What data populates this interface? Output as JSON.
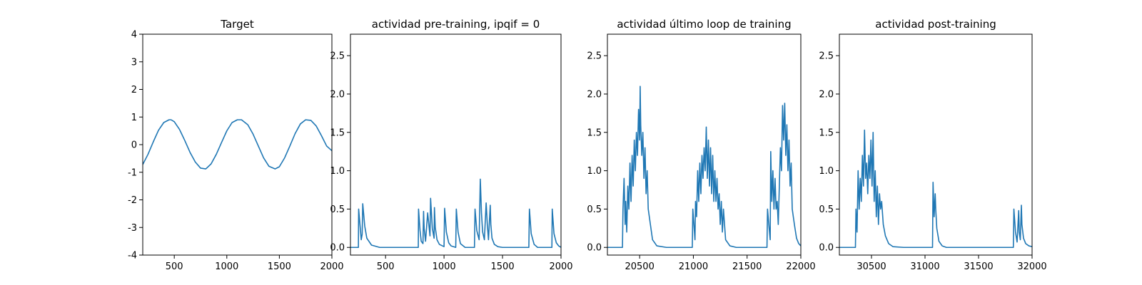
{
  "colors": {
    "series": "#1f77b4",
    "axes": "#000000",
    "background": "#ffffff"
  },
  "chart_data": [
    {
      "type": "line",
      "title": "Target",
      "xlabel": "",
      "ylabel": "",
      "xlim": [
        200,
        2000
      ],
      "ylim": [
        -4,
        4
      ],
      "xticks": [
        500,
        1000,
        1500,
        2000
      ],
      "yticks": [
        -4,
        -3,
        -2,
        -1,
        0,
        1,
        2,
        3,
        4
      ],
      "grid": false,
      "series": [
        {
          "x": [
            200,
            250,
            300,
            350,
            400,
            450,
            470,
            500,
            550,
            600,
            650,
            700,
            750,
            800,
            850,
            900,
            950,
            1000,
            1050,
            1100,
            1140,
            1200,
            1250,
            1300,
            1350,
            1400,
            1460,
            1500,
            1550,
            1600,
            1650,
            1700,
            1750,
            1800,
            1850,
            1900,
            1950,
            2000
          ],
          "y": [
            -0.72,
            -0.35,
            0.1,
            0.52,
            0.8,
            0.9,
            0.9,
            0.83,
            0.55,
            0.15,
            -0.28,
            -0.63,
            -0.85,
            -0.88,
            -0.7,
            -0.35,
            0.08,
            0.5,
            0.8,
            0.9,
            0.9,
            0.72,
            0.38,
            -0.05,
            -0.48,
            -0.78,
            -0.88,
            -0.8,
            -0.48,
            -0.05,
            0.4,
            0.75,
            0.9,
            0.88,
            0.68,
            0.33,
            -0.05,
            -0.22
          ]
        }
      ]
    },
    {
      "type": "line",
      "title": "actividad pre-training, ipqif = 0",
      "xlabel": "",
      "ylabel": "",
      "xlim": [
        200,
        2000
      ],
      "ylim": [
        -0.1,
        2.78
      ],
      "xticks": [
        500,
        1000,
        1500,
        2000
      ],
      "yticks": [
        0.0,
        0.5,
        1.0,
        1.5,
        2.0,
        2.5
      ],
      "ytick_labels": [
        "0.0",
        "0.5",
        "1.0",
        "1.5",
        "2.0",
        "2.5"
      ],
      "grid": false,
      "series": [
        {
          "x": [
            200,
            268,
            270,
            283,
            292,
            300,
            305,
            322,
            340,
            380,
            450,
            600,
            780,
            782,
            795,
            805,
            820,
            825,
            830,
            842,
            860,
            880,
            885,
            900,
            915,
            918,
            925,
            940,
            960,
            1000,
            1005,
            1020,
            1040,
            1060,
            1100,
            1105,
            1120,
            1140,
            1180,
            1260,
            1265,
            1280,
            1300,
            1310,
            1320,
            1330,
            1345,
            1360,
            1370,
            1380,
            1395,
            1400,
            1410,
            1430,
            1460,
            1500,
            1600,
            1725,
            1730,
            1745,
            1770,
            1800,
            1900,
            1922,
            1925,
            1940,
            1960,
            1980,
            2000
          ],
          "y": [
            0.0,
            0.0,
            0.5,
            0.27,
            0.1,
            0.17,
            0.57,
            0.28,
            0.12,
            0.03,
            0.0,
            0.0,
            0.0,
            0.5,
            0.22,
            0.08,
            0.05,
            0.47,
            0.25,
            0.08,
            0.45,
            0.15,
            0.64,
            0.25,
            0.12,
            0.52,
            0.26,
            0.1,
            0.04,
            0.01,
            0.51,
            0.2,
            0.06,
            0.02,
            0.0,
            0.5,
            0.2,
            0.05,
            0.0,
            0.0,
            0.5,
            0.22,
            0.1,
            0.89,
            0.45,
            0.2,
            0.1,
            0.58,
            0.3,
            0.1,
            0.55,
            0.3,
            0.12,
            0.04,
            0.01,
            0.0,
            0.0,
            0.0,
            0.5,
            0.18,
            0.04,
            0.0,
            0.0,
            0.0,
            0.5,
            0.18,
            0.06,
            0.02,
            0.0
          ]
        }
      ]
    },
    {
      "type": "line",
      "title": "actividad último loop de training",
      "xlabel": "",
      "ylabel": "",
      "xlim": [
        20200,
        22000
      ],
      "ylim": [
        -0.1,
        2.78
      ],
      "xticks": [
        20500,
        21000,
        21500,
        22000
      ],
      "yticks": [
        0.0,
        0.5,
        1.0,
        1.5,
        2.0,
        2.5
      ],
      "ytick_labels": [
        "0.0",
        "0.5",
        "1.0",
        "1.5",
        "2.0",
        "2.5"
      ],
      "grid": false,
      "series": [
        {
          "x": [
            20200,
            20340,
            20345,
            20355,
            20365,
            20370,
            20380,
            20390,
            20400,
            20410,
            20420,
            20430,
            20440,
            20450,
            20460,
            20470,
            20480,
            20490,
            20500,
            20505,
            20510,
            20520,
            20530,
            20540,
            20550,
            20560,
            20570,
            20580,
            20600,
            20620,
            20660,
            20750,
            20990,
            20995,
            21005,
            21015,
            21020,
            21030,
            21040,
            21050,
            21060,
            21070,
            21080,
            21090,
            21100,
            21110,
            21120,
            21130,
            21140,
            21150,
            21160,
            21170,
            21180,
            21190,
            21200,
            21210,
            21220,
            21230,
            21240,
            21250,
            21260,
            21270,
            21280,
            21300,
            21340,
            21400,
            21685,
            21690,
            21705,
            21715,
            21720,
            21730,
            21740,
            21750,
            21760,
            21770,
            21780,
            21790,
            21800,
            21810,
            21820,
            21830,
            21840,
            21850,
            21860,
            21870,
            21880,
            21890,
            21900,
            21910,
            21920,
            21940,
            21960,
            21980,
            22000
          ],
          "y": [
            0.0,
            0.0,
            0.5,
            0.9,
            0.3,
            0.6,
            0.2,
            0.8,
            0.5,
            1.1,
            0.6,
            1.2,
            0.8,
            1.4,
            1.0,
            1.5,
            1.2,
            1.8,
            1.4,
            2.1,
            1.6,
            1.2,
            1.5,
            0.9,
            1.3,
            0.7,
            1.0,
            0.5,
            0.3,
            0.1,
            0.02,
            0.0,
            0.0,
            0.5,
            0.3,
            0.1,
            0.6,
            0.4,
            1.0,
            0.6,
            1.1,
            0.7,
            1.2,
            0.9,
            1.3,
            1.0,
            1.57,
            0.9,
            1.4,
            0.8,
            1.3,
            0.7,
            1.2,
            0.6,
            1.0,
            0.6,
            0.9,
            0.5,
            0.7,
            0.3,
            0.6,
            0.2,
            0.5,
            0.1,
            0.02,
            0.0,
            0.0,
            0.5,
            0.25,
            0.1,
            1.25,
            0.6,
            1.0,
            0.5,
            0.9,
            0.5,
            0.6,
            0.3,
            0.8,
            1.3,
            1.0,
            1.85,
            1.4,
            1.88,
            1.2,
            1.6,
            1.0,
            1.4,
            0.8,
            1.1,
            0.5,
            0.3,
            0.12,
            0.05,
            0.02
          ]
        }
      ]
    },
    {
      "type": "line",
      "title": "actividad post-training",
      "xlabel": "",
      "ylabel": "",
      "xlim": [
        30200,
        32000
      ],
      "ylim": [
        -0.1,
        2.78
      ],
      "xticks": [
        30500,
        31000,
        31500,
        32000
      ],
      "yticks": [
        0.0,
        0.5,
        1.0,
        1.5,
        2.0,
        2.5
      ],
      "ytick_labels": [
        "0.0",
        "0.5",
        "1.0",
        "1.5",
        "2.0",
        "2.5"
      ],
      "grid": false,
      "series": [
        {
          "x": [
            30200,
            30350,
            30355,
            30365,
            30375,
            30385,
            30395,
            30405,
            30415,
            30425,
            30435,
            30445,
            30455,
            30465,
            30475,
            30485,
            30495,
            30505,
            30515,
            30525,
            30535,
            30545,
            30555,
            30565,
            30575,
            30585,
            30595,
            30610,
            30630,
            30660,
            30700,
            30800,
            31070,
            31075,
            31085,
            31095,
            31100,
            31110,
            31130,
            31160,
            31200,
            31300,
            31825,
            31830,
            31845,
            31860,
            31875,
            31880,
            31890,
            31900,
            31905,
            31920,
            31940,
            31970,
            32000
          ],
          "y": [
            0.0,
            0.0,
            0.5,
            0.2,
            1.0,
            0.5,
            0.9,
            0.6,
            1.2,
            0.8,
            1.53,
            0.9,
            1.1,
            0.7,
            1.2,
            0.9,
            1.4,
            0.8,
            1.5,
            0.6,
            1.0,
            0.4,
            0.8,
            0.3,
            0.7,
            0.5,
            0.6,
            0.3,
            0.15,
            0.05,
            0.01,
            0.0,
            0.0,
            0.85,
            0.4,
            0.7,
            0.5,
            0.25,
            0.08,
            0.02,
            0.0,
            0.0,
            0.0,
            0.5,
            0.2,
            0.07,
            0.48,
            0.2,
            0.1,
            0.55,
            0.3,
            0.12,
            0.05,
            0.02,
            0.01
          ]
        }
      ]
    }
  ]
}
